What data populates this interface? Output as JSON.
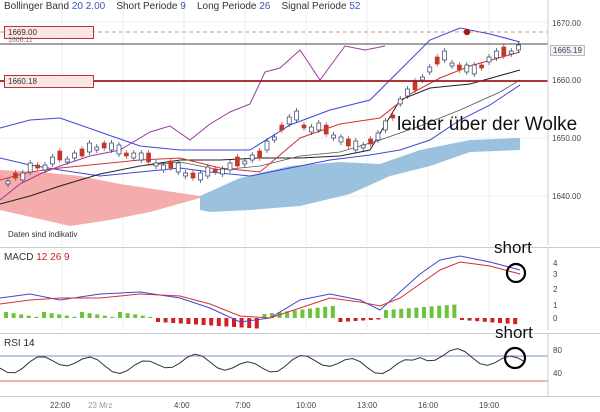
{
  "header": {
    "bollinger_label": "Bollinger Band",
    "bollinger_p1": "20",
    "bollinger_p2": "2.00",
    "short_label": "Short Periode",
    "short_value": "9",
    "long_label": "Long Periode",
    "long_value": "26",
    "signal_label": "Signal Periode",
    "signal_value": "52"
  },
  "price_panel": {
    "price_box_top": "1669.00",
    "price_box_top_sub": "1666.11",
    "price_box_mid": "1660.18",
    "current_price": "1665.19",
    "y_ticks": [
      "1670.00",
      "1660.00",
      "1650.00",
      "1640.00"
    ],
    "note": "Daten sind indikativ",
    "annotation": "leider über der Wolke"
  },
  "macd_panel": {
    "label": "MACD",
    "p1": "12",
    "p2": "26",
    "p3": "9",
    "y_ticks": [
      "4",
      "3",
      "2",
      "1",
      "0"
    ],
    "annotation": "short"
  },
  "rsi_panel": {
    "label": "RSI",
    "p1": "14",
    "y_ticks": [
      "80",
      "40"
    ],
    "annotation": "short"
  },
  "x_axis": {
    "ticks": [
      "22:00",
      "23 Mrz",
      "4:00",
      "7:00",
      "10:00",
      "13:00",
      "16:00",
      "19:00"
    ]
  },
  "colors": {
    "cloud_red": "#f4a3a3",
    "cloud_blue": "#8fbbdc",
    "bollinger": "#3b48d6",
    "kijun": "#222222",
    "tenkan": "#d33333",
    "chikou": "#9a3aa0",
    "macd_line": "#3b48d6",
    "signal_line": "#d33333",
    "hist_pos": "#6cc23a",
    "hist_neg": "#d42020",
    "rsi_line": "#333333"
  }
}
